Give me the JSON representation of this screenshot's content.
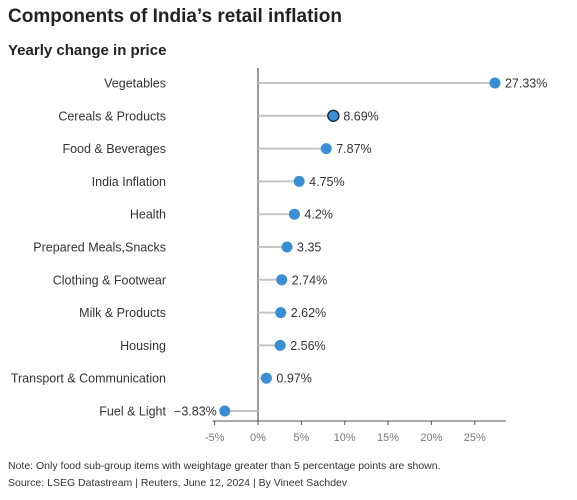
{
  "title": "Components of India’s retail inflation",
  "subtitle": "Yearly change in price",
  "note": "Note: Only food sub-group items with weightage greater than 5 percentage points are shown.",
  "source": "Source: LSEG Datastream | Reuters, June 12, 2024 | By Vineet Sachdev",
  "colors": {
    "dot": "#3a8fd4",
    "highlight_stroke": "#1a2a3a",
    "stem": "#c4c4c4",
    "axis": "#555555"
  },
  "chart_data": {
    "type": "lollipop",
    "title": "Components of India’s retail inflation",
    "subtitle": "Yearly change in price",
    "xlim": [
      -5,
      28
    ],
    "xticks": [
      -5,
      0,
      5,
      10,
      15,
      20,
      25
    ],
    "xtick_labels": [
      "-5%",
      "0%",
      "5%",
      "10%",
      "15%",
      "20%",
      "25%"
    ],
    "highlight": "Cereals & Products",
    "categories": [
      "Vegetables",
      "Cereals & Products",
      "Food & Beverages",
      "India Inflation",
      "Health",
      "Prepared Meals,Snacks",
      "Clothing & Footwear",
      "Milk & Products",
      "Housing",
      "Transport & Communication",
      "Fuel & Light"
    ],
    "values": [
      27.33,
      8.69,
      7.87,
      4.75,
      4.2,
      3.35,
      2.74,
      2.62,
      2.56,
      0.97,
      -3.83
    ],
    "value_labels": [
      "27.33%",
      "8.69%",
      "7.87%",
      "4.75%",
      "4.2%",
      "3.35",
      "2.74%",
      "2.62%",
      "2.56%",
      "0.97%",
      "−3.83%"
    ]
  }
}
